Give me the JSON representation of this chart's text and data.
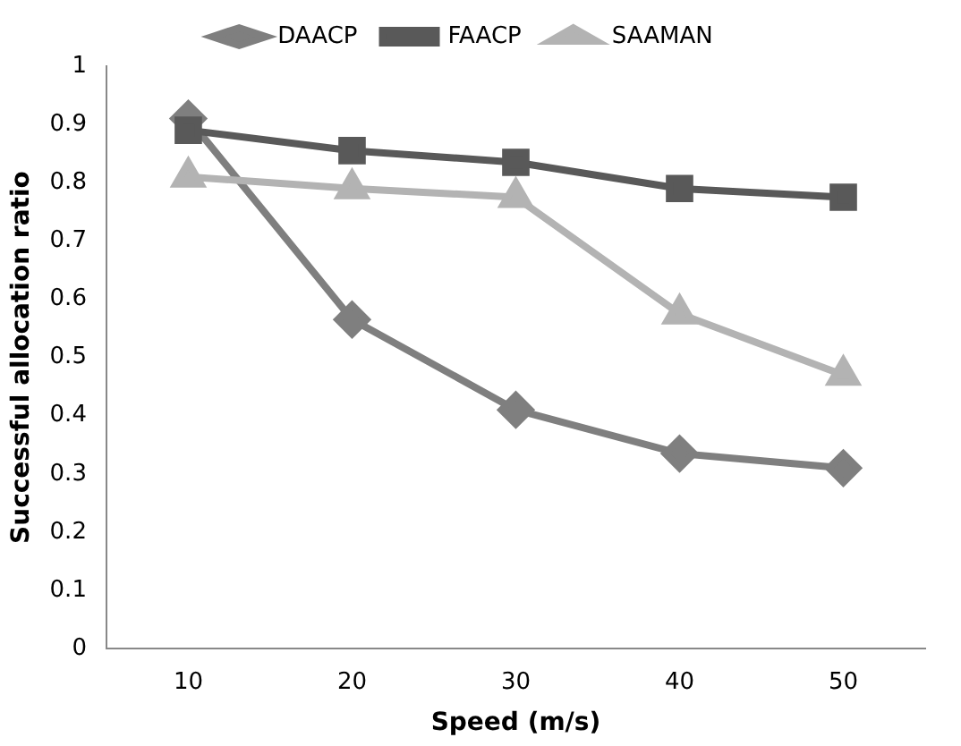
{
  "chart_data": {
    "type": "line",
    "xlabel": "Speed (m/s)",
    "ylabel": "Successful allocation ratio",
    "categories": [
      "10",
      "20",
      "30",
      "40",
      "50"
    ],
    "series": [
      {
        "name": "DAACP",
        "color": "#7f7f7f",
        "marker": "diamond",
        "values": [
          0.91,
          0.565,
          0.41,
          0.335,
          0.31
        ]
      },
      {
        "name": "FAACP",
        "color": "#595959",
        "marker": "square",
        "values": [
          0.89,
          0.855,
          0.835,
          0.79,
          0.775
        ]
      },
      {
        "name": "SAAMAN",
        "color": "#b3b3b3",
        "marker": "triangle",
        "values": [
          0.81,
          0.79,
          0.775,
          0.575,
          0.47
        ]
      }
    ],
    "ylim": [
      0,
      1
    ],
    "yticks": [
      0,
      0.1,
      0.2,
      0.3,
      0.4,
      0.5,
      0.6,
      0.7,
      0.8,
      0.9,
      1
    ],
    "grid": false,
    "legend": "top",
    "line_style": "solid"
  }
}
